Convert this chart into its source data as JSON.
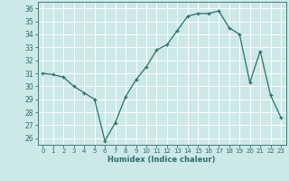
{
  "x": [
    0,
    1,
    2,
    3,
    4,
    5,
    6,
    7,
    8,
    9,
    10,
    11,
    12,
    13,
    14,
    15,
    16,
    17,
    18,
    19,
    20,
    21,
    22,
    23
  ],
  "y": [
    31.0,
    30.9,
    30.7,
    30.0,
    29.5,
    29.0,
    25.8,
    27.2,
    29.2,
    30.5,
    31.5,
    32.8,
    33.2,
    34.3,
    35.4,
    35.6,
    35.6,
    35.8,
    34.5,
    34.0,
    30.3,
    32.7,
    29.3,
    27.6
  ],
  "xlabel": "Humidex (Indice chaleur)",
  "xlim": [
    -0.5,
    23.5
  ],
  "ylim": [
    25.5,
    36.5
  ],
  "yticks": [
    26,
    27,
    28,
    29,
    30,
    31,
    32,
    33,
    34,
    35,
    36
  ],
  "xticks": [
    0,
    1,
    2,
    3,
    4,
    5,
    6,
    7,
    8,
    9,
    10,
    11,
    12,
    13,
    14,
    15,
    16,
    17,
    18,
    19,
    20,
    21,
    22,
    23
  ],
  "line_color": "#2d6e6e",
  "marker": "+",
  "bg_color": "#cce8e8",
  "grid_color": "#ffffff",
  "tick_label_color": "#2d6e6e",
  "xlabel_color": "#2d6e6e"
}
